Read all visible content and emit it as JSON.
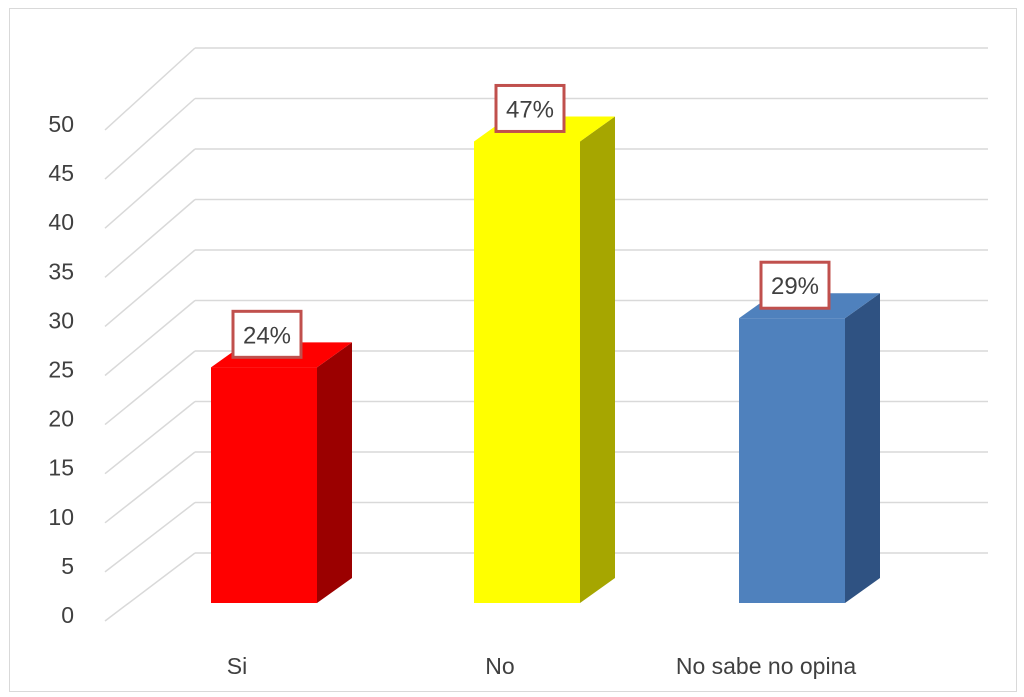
{
  "chart_data": {
    "type": "bar",
    "style": "3d-column",
    "categories": [
      "Si",
      "No",
      "No sabe no opina"
    ],
    "values": [
      24,
      47,
      29
    ],
    "data_labels": [
      "24%",
      "47%",
      "29%"
    ],
    "colors": [
      "#ff0000",
      "#ffff00",
      "#4f81bd"
    ],
    "side_colors": [
      "#9b0000",
      "#a6a600",
      "#2f5282"
    ],
    "label_border_color": "#c0504d",
    "yticks": [
      "0",
      "5",
      "10",
      "15",
      "20",
      "25",
      "30",
      "35",
      "40",
      "45",
      "50"
    ],
    "ylim": [
      0,
      50
    ],
    "grid": true,
    "legend": "none",
    "title": "",
    "xlabel": "",
    "ylabel": ""
  }
}
